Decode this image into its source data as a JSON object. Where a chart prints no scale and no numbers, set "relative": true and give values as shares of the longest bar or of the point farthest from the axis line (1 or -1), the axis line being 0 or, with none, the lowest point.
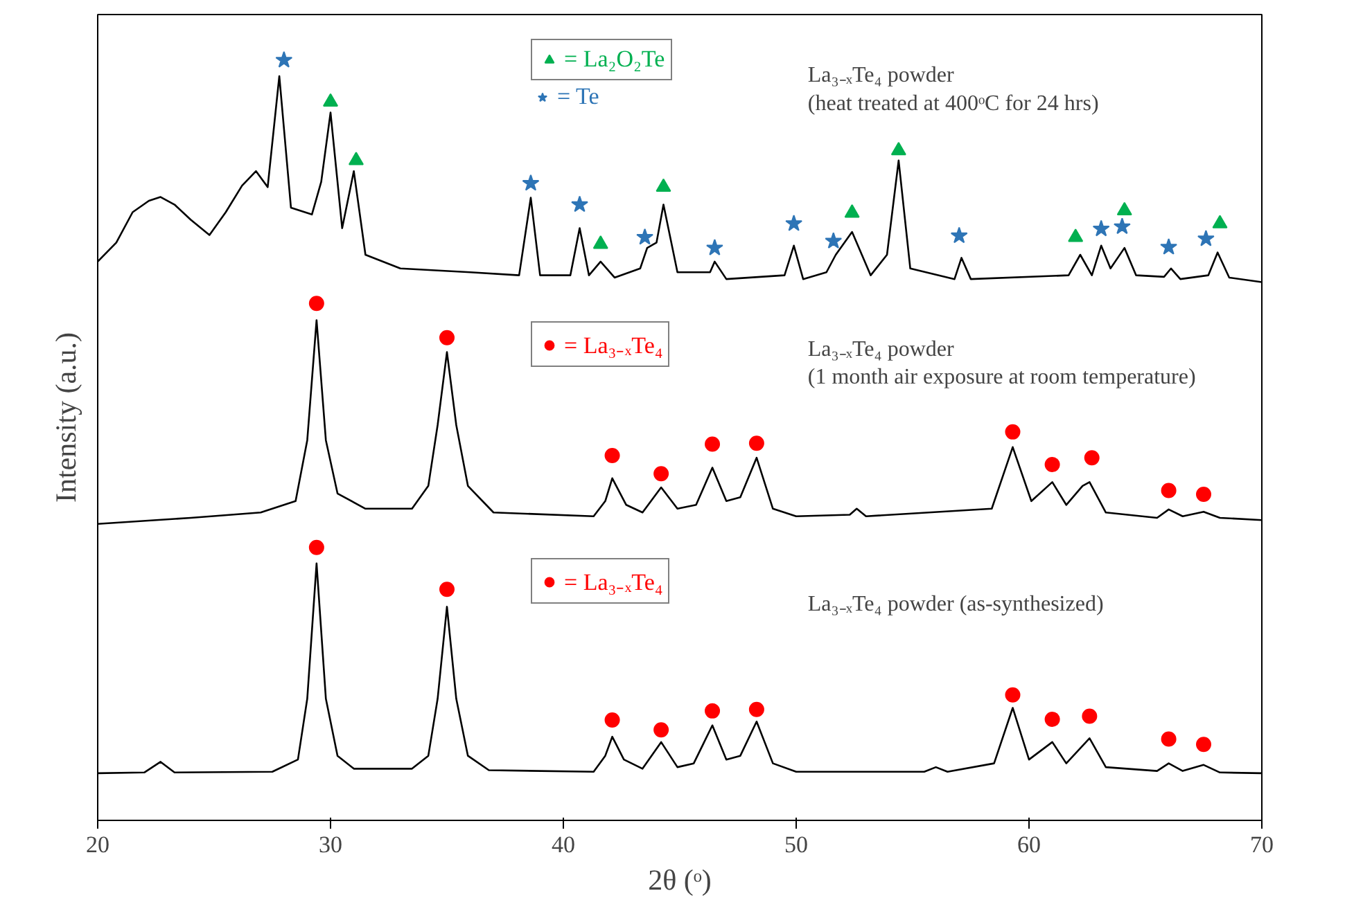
{
  "chart_data": {
    "type": "line",
    "relative": true,
    "xlabel": "2θ (ᵒ)",
    "ylabel": "Intensity (a.u.)",
    "xlim": [
      20,
      70
    ],
    "xticks": [
      20,
      30,
      40,
      50,
      60,
      70
    ],
    "grid": false,
    "legend": "top",
    "line_style": "solid",
    "marker": "none",
    "annotations": [
      "La₃₋ₓTe₄ powder\n(heat treated at 400ᵒC for 24 hrs)",
      "La₃₋ₓTe₄ powder\n(1 month air exposure at room temperature)",
      "La₃₋ₓTe₄ powder (as-synthesized)"
    ],
    "series": [
      {
        "color": "#000000",
        "x": [
          20,
          20.8,
          21.5,
          22.2,
          22.7,
          23.3,
          24.0,
          24.8,
          25.5,
          26.2,
          26.8,
          27.3,
          27.8,
          28.3,
          29.2,
          29.6,
          30.0,
          30.5,
          31.0,
          31.5,
          33,
          36,
          38.1,
          38.6,
          39,
          40.3,
          40.7,
          41.1,
          41.6,
          42.2,
          43.3,
          43.6,
          44.0,
          44.3,
          44.9,
          46.3,
          46.5,
          47,
          49.5,
          49.9,
          50.3,
          51.3,
          51.7,
          52.4,
          53.2,
          53.9,
          54.4,
          54.9,
          56.8,
          57.1,
          57.5,
          61.7,
          62.2,
          62.7,
          63.1,
          63.5,
          64.1,
          64.6,
          65.8,
          66.1,
          66.5,
          67.7,
          68.1,
          68.6,
          70
        ],
        "values": [
          0.735,
          0.76,
          0.8,
          0.815,
          0.82,
          0.81,
          0.79,
          0.77,
          0.8,
          0.835,
          0.854,
          0.833,
          0.979,
          0.806,
          0.797,
          0.84,
          0.931,
          0.779,
          0.854,
          0.744,
          0.726,
          0.721,
          0.717,
          0.819,
          0.717,
          0.717,
          0.779,
          0.717,
          0.735,
          0.714,
          0.726,
          0.753,
          0.76,
          0.81,
          0.721,
          0.721,
          0.735,
          0.712,
          0.717,
          0.756,
          0.712,
          0.721,
          0.744,
          0.774,
          0.717,
          0.744,
          0.868,
          0.726,
          0.712,
          0.74,
          0.712,
          0.717,
          0.744,
          0.717,
          0.756,
          0.726,
          0.753,
          0.717,
          0.715,
          0.726,
          0.712,
          0.717,
          0.747,
          0.714,
          0.708
        ]
      },
      {
        "color": "#000000",
        "x": [
          20,
          24,
          27,
          28.5,
          29.0,
          29.4,
          29.8,
          30.3,
          31.5,
          33.5,
          34.2,
          34.6,
          35.0,
          35.4,
          35.9,
          37,
          41.3,
          41.8,
          42.1,
          42.7,
          43.4,
          44.2,
          44.9,
          45.7,
          46.4,
          47.0,
          47.6,
          48.3,
          49.0,
          50,
          52.3,
          52.6,
          53,
          58.4,
          59.3,
          60.1,
          61.0,
          61.6,
          62.3,
          62.6,
          63.3,
          65.5,
          66.0,
          66.6,
          67.5,
          68.2,
          70
        ],
        "values": [
          0.39,
          0.398,
          0.405,
          0.42,
          0.5,
          0.658,
          0.5,
          0.43,
          0.41,
          0.41,
          0.44,
          0.52,
          0.616,
          0.52,
          0.44,
          0.405,
          0.4,
          0.42,
          0.45,
          0.415,
          0.405,
          0.438,
          0.41,
          0.415,
          0.464,
          0.42,
          0.425,
          0.477,
          0.41,
          0.4,
          0.402,
          0.41,
          0.4,
          0.41,
          0.491,
          0.42,
          0.445,
          0.415,
          0.44,
          0.445,
          0.405,
          0.398,
          0.409,
          0.4,
          0.406,
          0.398,
          0.395
        ]
      },
      {
        "color": "#000000",
        "x": [
          20,
          22.0,
          22.7,
          23.3,
          27.5,
          28.6,
          29.0,
          29.4,
          29.8,
          30.3,
          31,
          33.5,
          34.2,
          34.6,
          35.0,
          35.4,
          35.9,
          36.8,
          41.3,
          41.8,
          42.1,
          42.6,
          43.4,
          44.2,
          44.9,
          45.6,
          46.4,
          47.0,
          47.6,
          48.3,
          49.0,
          50,
          55.5,
          56,
          56.5,
          58.5,
          59.3,
          60.0,
          61.0,
          61.6,
          62.6,
          63.3,
          65.5,
          66.0,
          66.6,
          67.5,
          68.2,
          70
        ],
        "values": [
          0.062,
          0.063,
          0.077,
          0.063,
          0.064,
          0.08,
          0.16,
          0.338,
          0.16,
          0.085,
          0.068,
          0.068,
          0.085,
          0.16,
          0.281,
          0.16,
          0.085,
          0.066,
          0.064,
          0.085,
          0.11,
          0.08,
          0.068,
          0.103,
          0.07,
          0.075,
          0.125,
          0.08,
          0.085,
          0.13,
          0.075,
          0.064,
          0.064,
          0.07,
          0.064,
          0.075,
          0.148,
          0.08,
          0.103,
          0.075,
          0.108,
          0.07,
          0.065,
          0.075,
          0.065,
          0.073,
          0.063,
          0.062
        ]
      },
      {
        "type": "scatter",
        "name": "= La₂O₂Te",
        "marker": "triangle",
        "color": "#00b050",
        "x": [
          30.0,
          31.1,
          41.6,
          44.3,
          52.4,
          54.4,
          62.0,
          64.1,
          68.2
        ],
        "values": [
          0.945,
          0.868,
          0.758,
          0.833,
          0.799,
          0.881,
          0.767,
          0.802,
          0.785
        ]
      },
      {
        "type": "scatter",
        "name": "= Te",
        "marker": "star",
        "color": "#2e75b6",
        "x": [
          28.0,
          38.6,
          40.7,
          43.5,
          46.5,
          49.9,
          51.6,
          57.0,
          63.1,
          64.0,
          66.0,
          67.6
        ],
        "values": [
          1.0,
          0.838,
          0.81,
          0.767,
          0.753,
          0.785,
          0.762,
          0.769,
          0.778,
          0.781,
          0.754,
          0.765
        ]
      },
      {
        "type": "scatter",
        "name": "= La₃₋ₓTe₄",
        "marker": "circle",
        "color": "#ff0000",
        "x": [
          29.4,
          35.0,
          42.1,
          44.2,
          46.4,
          48.3,
          59.3,
          61.0,
          62.7,
          66.0,
          67.5
        ],
        "values": [
          0.68,
          0.635,
          0.48,
          0.456,
          0.495,
          0.496,
          0.511,
          0.468,
          0.477,
          0.434,
          0.429
        ]
      },
      {
        "type": "scatter",
        "name": "= La₃₋ₓTe₄",
        "marker": "circle",
        "color": "#ff0000",
        "x": [
          29.4,
          35.0,
          42.1,
          44.2,
          46.4,
          48.3,
          59.3,
          61.0,
          62.6,
          66.0,
          67.5
        ],
        "values": [
          0.359,
          0.304,
          0.132,
          0.119,
          0.144,
          0.146,
          0.165,
          0.133,
          0.137,
          0.107,
          0.1
        ]
      }
    ]
  }
}
